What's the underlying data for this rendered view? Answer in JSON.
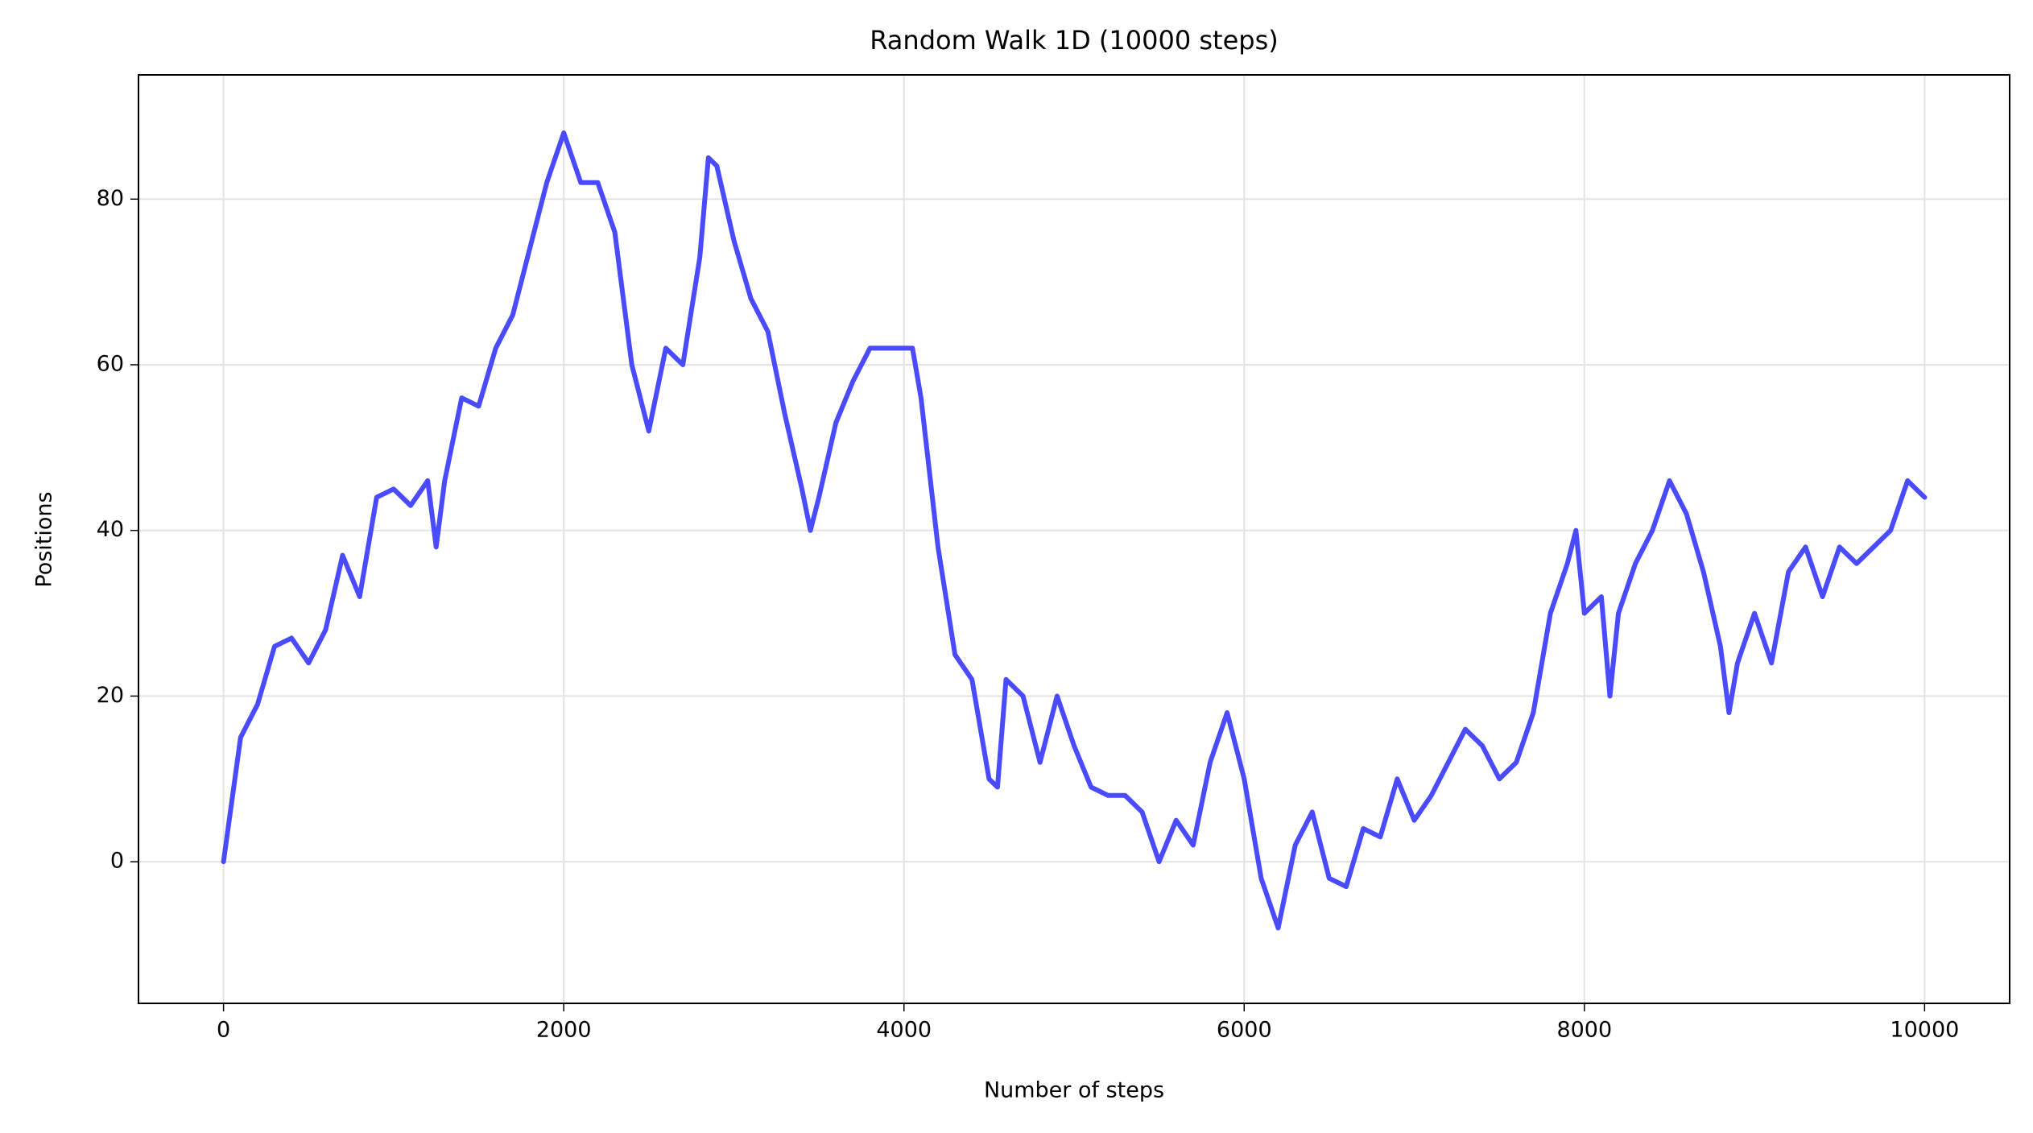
{
  "chart_data": {
    "type": "line",
    "title": "Random Walk 1D (10000 steps)",
    "xlabel": "Number of steps",
    "ylabel": "Positions",
    "x": [
      0,
      100,
      200,
      300,
      400,
      500,
      600,
      700,
      800,
      900,
      1000,
      1100,
      1200,
      1250,
      1300,
      1400,
      1500,
      1600,
      1700,
      1800,
      1900,
      2000,
      2100,
      2200,
      2300,
      2400,
      2500,
      2600,
      2700,
      2800,
      2850,
      2900,
      3000,
      3100,
      3200,
      3300,
      3400,
      3450,
      3500,
      3600,
      3700,
      3800,
      3900,
      4000,
      4050,
      4100,
      4200,
      4300,
      4400,
      4500,
      4550,
      4600,
      4700,
      4800,
      4900,
      5000,
      5100,
      5200,
      5300,
      5400,
      5500,
      5600,
      5700,
      5800,
      5900,
      6000,
      6100,
      6200,
      6300,
      6400,
      6500,
      6600,
      6700,
      6800,
      6900,
      7000,
      7100,
      7200,
      7300,
      7400,
      7500,
      7600,
      7700,
      7800,
      7900,
      7950,
      8000,
      8100,
      8150,
      8200,
      8300,
      8400,
      8500,
      8600,
      8700,
      8800,
      8850,
      8900,
      9000,
      9100,
      9200,
      9300,
      9400,
      9500,
      9600,
      9700,
      9800,
      9900,
      10000
    ],
    "values": [
      0,
      15,
      19,
      26,
      27,
      24,
      28,
      37,
      32,
      44,
      45,
      43,
      46,
      38,
      46,
      56,
      55,
      62,
      66,
      74,
      82,
      88,
      82,
      82,
      76,
      60,
      52,
      62,
      60,
      73,
      85,
      84,
      75,
      68,
      64,
      54,
      45,
      40,
      44,
      53,
      58,
      62,
      62,
      62,
      62,
      56,
      38,
      25,
      22,
      10,
      9,
      22,
      20,
      12,
      20,
      14,
      9,
      8,
      8,
      6,
      0,
      5,
      2,
      12,
      18,
      10,
      -2,
      -8,
      2,
      6,
      -2,
      -3,
      4,
      3,
      10,
      5,
      8,
      12,
      16,
      14,
      10,
      12,
      18,
      30,
      36,
      40,
      30,
      32,
      20,
      30,
      36,
      40,
      46,
      42,
      35,
      26,
      18,
      24,
      30,
      24,
      35,
      38,
      32,
      38,
      36,
      38,
      40,
      46,
      44
    ],
    "color": "#4a4aff",
    "xlim": [
      -500,
      10500
    ],
    "xticks": [
      0,
      2000,
      4000,
      6000,
      8000,
      10000
    ],
    "ylim": [
      -17.1,
      95
    ],
    "yticks": [
      0,
      20,
      40,
      60,
      80
    ],
    "grid": true
  }
}
